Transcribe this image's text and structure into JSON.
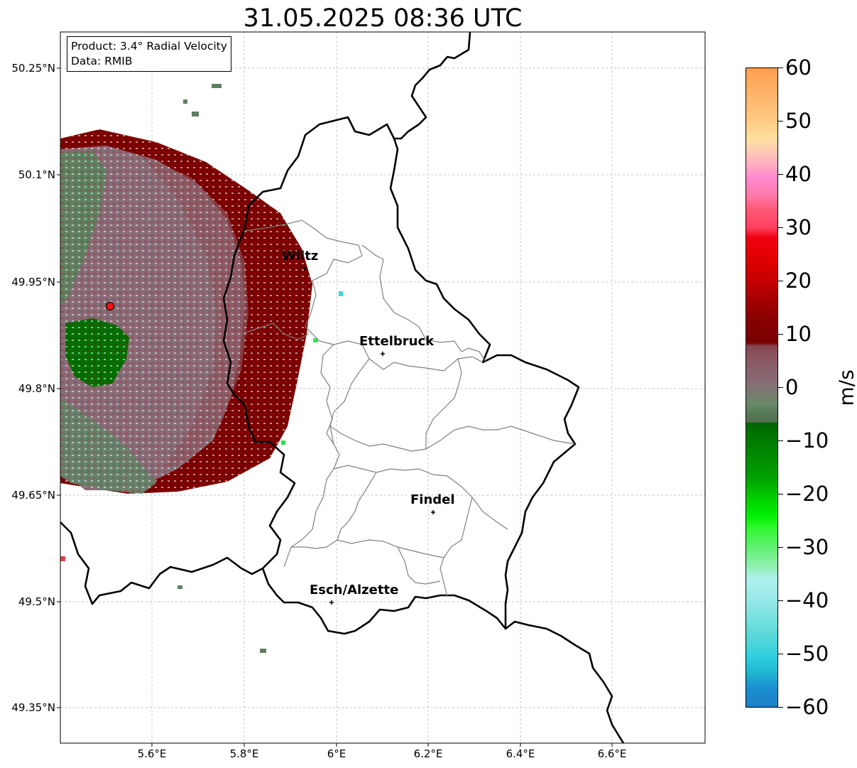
{
  "title": "31.05.2025 08:36 UTC",
  "info": {
    "product": "Product: 3.4° Radial Velocity",
    "data": "Data: RMIB"
  },
  "axes": {
    "lat_labels": [
      "50.25°N",
      "50.1°N",
      "49.95°N",
      "49.8°N",
      "49.65°N",
      "49.5°N",
      "49.35°N"
    ],
    "lon_labels": [
      "5.6°E",
      "5.8°E",
      "6°E",
      "6.2°E",
      "6.4°E",
      "6.6°E"
    ],
    "extent": {
      "lon": [
        5.4,
        6.8
      ],
      "lat": [
        49.3,
        50.3
      ]
    }
  },
  "cities": [
    {
      "name": "Wiltz",
      "lon": 5.93,
      "lat": 49.966
    },
    {
      "name": "Ettelbruck",
      "lon": 6.1,
      "lat": 49.847
    },
    {
      "name": "Findel",
      "lon": 6.21,
      "lat": 49.623
    },
    {
      "name": "Esch/Alzette",
      "lon": 5.99,
      "lat": 49.496
    }
  ],
  "radar_site": {
    "lon": 5.505,
    "lat": 49.914
  },
  "colorbar": {
    "unit": "m/s",
    "min": -60,
    "max": 60,
    "ticks": [
      "60",
      "50",
      "40",
      "30",
      "20",
      "10",
      "0",
      "−10",
      "−20",
      "−30",
      "−40",
      "−50",
      "−60"
    ]
  },
  "colors": {
    "outbound": "#7a0000",
    "inbound": "#006400",
    "near_zero": "#876b76",
    "border": "#000000",
    "canton": "#808080"
  }
}
